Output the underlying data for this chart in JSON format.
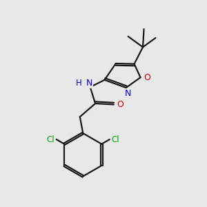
{
  "bg_color": "#e8e8e8",
  "bond_color": "#1a1a1a",
  "bond_width": 1.6,
  "atom_colors": {
    "N": "#0000cc",
    "O": "#cc0000",
    "Cl": "#00aa00",
    "C": "#1a1a1a",
    "H": "#0000cc"
  },
  "figsize": [
    3.0,
    3.0
  ],
  "dpi": 100
}
